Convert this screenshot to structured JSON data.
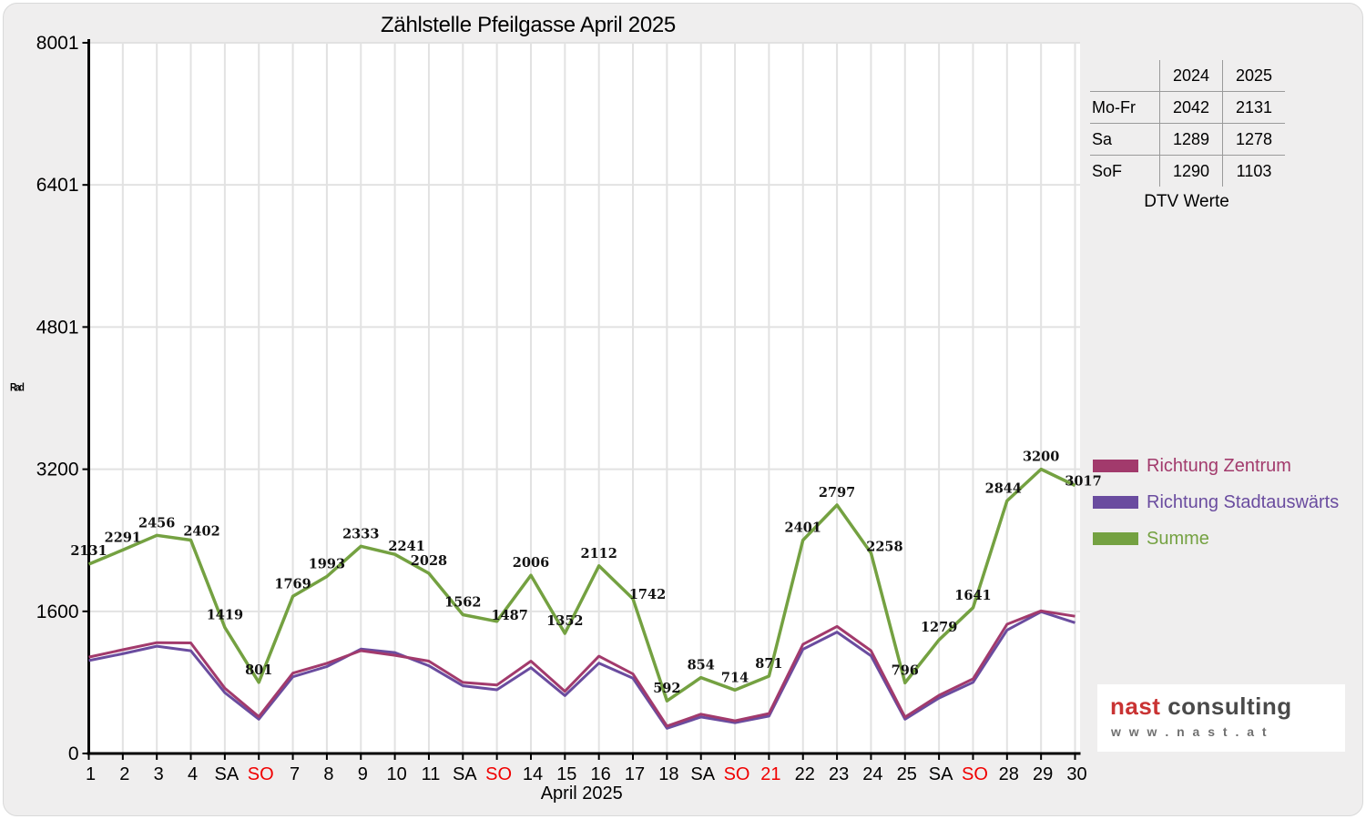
{
  "title": "Zählstelle Pfeilgasse April 2025",
  "colors": {
    "canvas_bg": "#efeeee",
    "plot_bg": "#ffffff",
    "grid": "#e2e2e2",
    "axis": "#000000",
    "holiday_red": "#f00000",
    "data_label": "#111111"
  },
  "chart_data": {
    "type": "line",
    "title": "Zählstelle Pfeilgasse April 2025",
    "xlabel": "April 2025",
    "ylabel": "Rad",
    "ylim": [
      0,
      8001
    ],
    "y_ticks": [
      0,
      1600,
      3200,
      4801,
      6401,
      8001
    ],
    "grid": true,
    "legend_position": "right",
    "x_tick_labels": [
      "1",
      "2",
      "3",
      "4",
      "SA",
      "SO",
      "7",
      "8",
      "9",
      "10",
      "11",
      "SA",
      "SO",
      "14",
      "15",
      "16",
      "17",
      "18",
      "SA",
      "SO",
      "21",
      "22",
      "23",
      "24",
      "25",
      "SA",
      "SO",
      "28",
      "29",
      "30"
    ],
    "red_x_indices": [
      5,
      12,
      19,
      20,
      26
    ],
    "series": [
      {
        "name": "Richtung Zentrum",
        "color": "#a23a6c",
        "estimated": true,
        "values": [
          1085,
          1168,
          1248,
          1245,
          735,
          415,
          905,
          1015,
          1158,
          1105,
          1040,
          800,
          770,
          1040,
          700,
          1095,
          895,
          308,
          443,
          368,
          450,
          1228,
          1430,
          1158,
          410,
          655,
          840,
          1455,
          1605,
          1545
        ]
      },
      {
        "name": "Richtung Stadtauswärts",
        "color": "#6a4c9f",
        "estimated": true,
        "values": [
          1046,
          1123,
          1208,
          1157,
          684,
          386,
          864,
          978,
          1175,
          1136,
          988,
          762,
          717,
          966,
          652,
          1017,
          847,
          284,
          411,
          346,
          421,
          1173,
          1367,
          1100,
          386,
          624,
          801,
          1389,
          1595,
          1472
        ]
      },
      {
        "name": "Summe",
        "color": "#74a141",
        "labels_shown": true,
        "values": [
          2131,
          2291,
          2456,
          2402,
          1419,
          801,
          1769,
          1993,
          2333,
          2241,
          2028,
          1562,
          1487,
          2006,
          1352,
          2112,
          1742,
          592,
          854,
          714,
          871,
          2401,
          2797,
          2258,
          796,
          1279,
          1641,
          2844,
          3200,
          3017
        ]
      }
    ]
  },
  "table": {
    "col_headers": [
      "2024",
      "2025"
    ],
    "rows": [
      {
        "label": "Mo-Fr",
        "values": [
          "2042",
          "2131"
        ]
      },
      {
        "label": "Sa",
        "values": [
          "1289",
          "1278"
        ]
      },
      {
        "label": "SoF",
        "values": [
          "1290",
          "1103"
        ]
      }
    ],
    "caption": "DTV Werte"
  },
  "legend": {
    "items": [
      {
        "label": "Richtung Zentrum",
        "color": "#a23a6c"
      },
      {
        "label": "Richtung Stadtauswärts",
        "color": "#6a4c9f"
      },
      {
        "label": "Summe",
        "color": "#74a141"
      }
    ]
  },
  "logo": {
    "brand_primary": "nast",
    "brand_secondary": " consulting",
    "brand_primary_color": "#c93333",
    "brand_secondary_color": "#4a4a4a",
    "url_text": "w w w . n a s t . a t",
    "url_color": "#707070"
  }
}
